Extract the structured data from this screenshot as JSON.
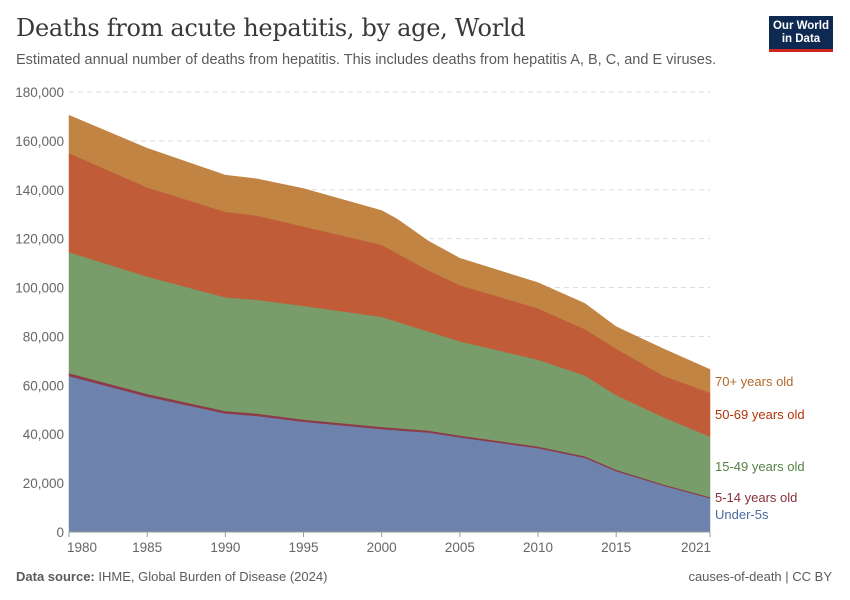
{
  "title": "Deaths from acute hepatitis, by age, World",
  "subtitle": "Estimated annual number of deaths from hepatitis. This includes deaths from hepatitis A, B, C, and E viruses.",
  "logo": "Our World in Data",
  "footer": {
    "source_label": "Data source:",
    "source": "IHME, Global Burden of Disease (2024)",
    "right": "causes-of-death | CC BY"
  },
  "chart_data": {
    "type": "area",
    "stacked": true,
    "title": "Deaths from acute hepatitis, by age, World",
    "xlabel": "",
    "ylabel": "",
    "xlim": [
      1980,
      2021
    ],
    "ylim": [
      0,
      180000
    ],
    "grid": true,
    "legend": "right, inline labels",
    "x_ticks": [
      "1980",
      "1985",
      "1990",
      "1995",
      "2000",
      "2005",
      "2010",
      "2015",
      "2021"
    ],
    "y_ticks": [
      "0",
      "20,000",
      "40,000",
      "60,000",
      "80,000",
      "100,000",
      "120,000",
      "140,000",
      "160,000",
      "180,000"
    ],
    "x": [
      1980,
      1985,
      1990,
      1992,
      1995,
      2000,
      2001,
      2003,
      2005,
      2010,
      2013,
      2015,
      2018,
      2021
    ],
    "series": [
      {
        "name": "Under-5s",
        "color": "#6d83ae",
        "label_color": "#4c6a9c",
        "values": [
          63800,
          55400,
          48500,
          47500,
          45100,
          42100,
          41600,
          40700,
          38700,
          34300,
          30300,
          24900,
          19000,
          13800
        ]
      },
      {
        "name": "5-14 years old",
        "color": "#8c3b47",
        "label_color": "#883039",
        "values": [
          1200,
          1100,
          1000,
          1000,
          900,
          900,
          900,
          800,
          800,
          700,
          700,
          600,
          500,
          500
        ]
      },
      {
        "name": "15-49 years old",
        "color": "#789c6a",
        "label_color": "#578145",
        "values": [
          49500,
          48000,
          46500,
          46500,
          46500,
          45000,
          43500,
          40500,
          38500,
          35500,
          33000,
          30500,
          27500,
          24700
        ]
      },
      {
        "name": "50-69 years old",
        "color": "#c05d38",
        "label_color": "#b13507",
        "values": [
          40500,
          36500,
          35000,
          34500,
          32500,
          29500,
          28000,
          25000,
          23000,
          21000,
          19000,
          19000,
          17000,
          18000
        ]
      },
      {
        "name": "70+ years old",
        "color": "#c18443",
        "label_color": "#b2692c",
        "values": [
          15500,
          16000,
          15000,
          15000,
          15500,
          14000,
          14000,
          12000,
          11000,
          10500,
          10500,
          9000,
          11000,
          9500
        ]
      }
    ]
  }
}
